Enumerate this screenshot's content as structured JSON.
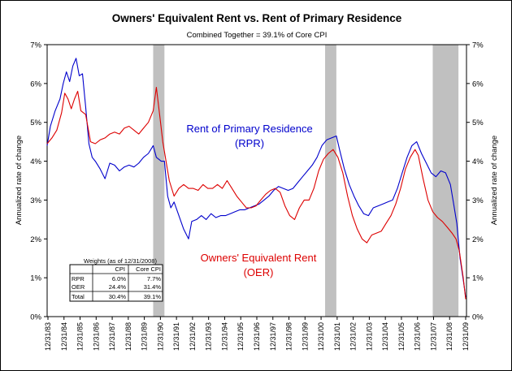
{
  "chart_data": {
    "type": "line",
    "title": "Owners' Equivalent Rent vs. Rent of Primary Residence",
    "subtitle": "Combined Together = 39.1% of Core CPI",
    "ylabel_left": "Annualized rate of change",
    "ylabel_right": "Annualized rate of change",
    "ylim": [
      0,
      7
    ],
    "y_ticks": [
      "0%",
      "1%",
      "2%",
      "3%",
      "4%",
      "5%",
      "6%",
      "7%"
    ],
    "x_ticks": [
      "12/31/83",
      "12/31/84",
      "12/31/85",
      "12/31/86",
      "12/31/87",
      "12/31/88",
      "12/31/89",
      "12/31/90",
      "12/31/91",
      "12/31/92",
      "12/31/93",
      "12/31/94",
      "12/31/95",
      "12/31/96",
      "12/31/97",
      "12/31/98",
      "12/31/99",
      "12/31/00",
      "12/31/01",
      "12/31/02",
      "12/31/03",
      "12/31/04",
      "12/31/05",
      "12/31/06",
      "12/31/07",
      "12/31/08",
      "12/31/09"
    ],
    "recessions": [
      [
        1990.5,
        1991.2
      ],
      [
        2001.2,
        2001.9
      ],
      [
        2007.9,
        2009.5
      ]
    ],
    "series": [
      {
        "label": "Rent of Primary Residence",
        "label2": "(RPR)",
        "color": "#0000CC",
        "points": [
          [
            1983.9,
            4.4
          ],
          [
            1984.1,
            4.9
          ],
          [
            1984.4,
            5.3
          ],
          [
            1984.7,
            5.6
          ],
          [
            1984.9,
            6.0
          ],
          [
            1985.1,
            6.3
          ],
          [
            1985.3,
            6.05
          ],
          [
            1985.5,
            6.45
          ],
          [
            1985.7,
            6.65
          ],
          [
            1985.9,
            6.2
          ],
          [
            1986.1,
            6.25
          ],
          [
            1986.3,
            5.4
          ],
          [
            1986.5,
            4.45
          ],
          [
            1986.7,
            4.1
          ],
          [
            1986.9,
            4.0
          ],
          [
            1987.2,
            3.8
          ],
          [
            1987.5,
            3.55
          ],
          [
            1987.8,
            3.95
          ],
          [
            1988.1,
            3.9
          ],
          [
            1988.4,
            3.75
          ],
          [
            1988.7,
            3.85
          ],
          [
            1989.0,
            3.9
          ],
          [
            1989.3,
            3.85
          ],
          [
            1989.6,
            3.95
          ],
          [
            1989.9,
            4.1
          ],
          [
            1990.2,
            4.2
          ],
          [
            1990.5,
            4.4
          ],
          [
            1990.7,
            4.1
          ],
          [
            1991.0,
            4.0
          ],
          [
            1991.2,
            4.0
          ],
          [
            1991.4,
            3.1
          ],
          [
            1991.6,
            2.8
          ],
          [
            1991.8,
            2.95
          ],
          [
            1992.1,
            2.6
          ],
          [
            1992.4,
            2.25
          ],
          [
            1992.7,
            2.0
          ],
          [
            1992.9,
            2.45
          ],
          [
            1993.2,
            2.5
          ],
          [
            1993.5,
            2.6
          ],
          [
            1993.8,
            2.5
          ],
          [
            1994.1,
            2.65
          ],
          [
            1994.4,
            2.55
          ],
          [
            1994.7,
            2.6
          ],
          [
            1995.0,
            2.6
          ],
          [
            1995.3,
            2.65
          ],
          [
            1995.6,
            2.7
          ],
          [
            1995.9,
            2.75
          ],
          [
            1996.2,
            2.75
          ],
          [
            1996.5,
            2.8
          ],
          [
            1996.8,
            2.85
          ],
          [
            1997.1,
            2.9
          ],
          [
            1997.4,
            3.0
          ],
          [
            1997.7,
            3.1
          ],
          [
            1998.0,
            3.25
          ],
          [
            1998.3,
            3.35
          ],
          [
            1998.6,
            3.3
          ],
          [
            1998.9,
            3.25
          ],
          [
            1999.2,
            3.3
          ],
          [
            1999.5,
            3.45
          ],
          [
            1999.8,
            3.6
          ],
          [
            2000.1,
            3.75
          ],
          [
            2000.4,
            3.9
          ],
          [
            2000.7,
            4.1
          ],
          [
            2001.0,
            4.4
          ],
          [
            2001.3,
            4.55
          ],
          [
            2001.6,
            4.6
          ],
          [
            2001.9,
            4.65
          ],
          [
            2002.1,
            4.3
          ],
          [
            2002.4,
            3.8
          ],
          [
            2002.7,
            3.4
          ],
          [
            2003.0,
            3.1
          ],
          [
            2003.3,
            2.85
          ],
          [
            2003.6,
            2.65
          ],
          [
            2003.9,
            2.6
          ],
          [
            2004.2,
            2.8
          ],
          [
            2004.5,
            2.85
          ],
          [
            2004.8,
            2.9
          ],
          [
            2005.1,
            2.95
          ],
          [
            2005.4,
            3.0
          ],
          [
            2005.7,
            3.3
          ],
          [
            2006.0,
            3.7
          ],
          [
            2006.3,
            4.1
          ],
          [
            2006.6,
            4.4
          ],
          [
            2006.9,
            4.5
          ],
          [
            2007.2,
            4.2
          ],
          [
            2007.5,
            3.95
          ],
          [
            2007.8,
            3.7
          ],
          [
            2008.1,
            3.6
          ],
          [
            2008.4,
            3.75
          ],
          [
            2008.7,
            3.7
          ],
          [
            2009.0,
            3.4
          ],
          [
            2009.2,
            2.9
          ],
          [
            2009.4,
            2.4
          ],
          [
            2009.6,
            1.5
          ],
          [
            2009.8,
            0.95
          ],
          [
            2009.95,
            0.5
          ]
        ]
      },
      {
        "label": "Owners' Equivalent Rent",
        "label2": "(OER)",
        "color": "#DD0000",
        "points": [
          [
            1983.9,
            4.45
          ],
          [
            1984.2,
            4.6
          ],
          [
            1984.5,
            4.8
          ],
          [
            1984.8,
            5.25
          ],
          [
            1985.0,
            5.75
          ],
          [
            1985.2,
            5.6
          ],
          [
            1985.4,
            5.35
          ],
          [
            1985.6,
            5.6
          ],
          [
            1985.8,
            5.8
          ],
          [
            1986.0,
            5.3
          ],
          [
            1986.3,
            5.2
          ],
          [
            1986.6,
            4.5
          ],
          [
            1986.9,
            4.45
          ],
          [
            1987.2,
            4.55
          ],
          [
            1987.5,
            4.6
          ],
          [
            1987.8,
            4.7
          ],
          [
            1988.1,
            4.75
          ],
          [
            1988.4,
            4.7
          ],
          [
            1988.7,
            4.85
          ],
          [
            1989.0,
            4.9
          ],
          [
            1989.3,
            4.8
          ],
          [
            1989.6,
            4.7
          ],
          [
            1989.9,
            4.85
          ],
          [
            1990.2,
            5.0
          ],
          [
            1990.5,
            5.3
          ],
          [
            1990.7,
            5.9
          ],
          [
            1990.9,
            5.2
          ],
          [
            1991.1,
            4.5
          ],
          [
            1991.3,
            4.0
          ],
          [
            1991.5,
            3.5
          ],
          [
            1991.8,
            3.1
          ],
          [
            1992.1,
            3.3
          ],
          [
            1992.4,
            3.4
          ],
          [
            1992.7,
            3.3
          ],
          [
            1993.0,
            3.3
          ],
          [
            1993.3,
            3.25
          ],
          [
            1993.6,
            3.4
          ],
          [
            1993.9,
            3.3
          ],
          [
            1994.2,
            3.3
          ],
          [
            1994.5,
            3.4
          ],
          [
            1994.8,
            3.3
          ],
          [
            1995.1,
            3.5
          ],
          [
            1995.4,
            3.3
          ],
          [
            1995.7,
            3.1
          ],
          [
            1996.0,
            2.95
          ],
          [
            1996.3,
            2.8
          ],
          [
            1996.6,
            2.8
          ],
          [
            1996.9,
            2.85
          ],
          [
            1997.2,
            3.0
          ],
          [
            1997.5,
            3.15
          ],
          [
            1997.8,
            3.25
          ],
          [
            1998.1,
            3.3
          ],
          [
            1998.4,
            3.2
          ],
          [
            1998.7,
            2.85
          ],
          [
            1999.0,
            2.6
          ],
          [
            1999.3,
            2.5
          ],
          [
            1999.6,
            2.8
          ],
          [
            1999.9,
            3.0
          ],
          [
            2000.2,
            3.0
          ],
          [
            2000.5,
            3.3
          ],
          [
            2000.8,
            3.75
          ],
          [
            2001.1,
            4.05
          ],
          [
            2001.4,
            4.2
          ],
          [
            2001.7,
            4.3
          ],
          [
            2002.0,
            4.1
          ],
          [
            2002.3,
            3.7
          ],
          [
            2002.6,
            3.1
          ],
          [
            2002.9,
            2.6
          ],
          [
            2003.2,
            2.25
          ],
          [
            2003.5,
            2.0
          ],
          [
            2003.8,
            1.9
          ],
          [
            2004.1,
            2.1
          ],
          [
            2004.4,
            2.15
          ],
          [
            2004.7,
            2.2
          ],
          [
            2005.0,
            2.4
          ],
          [
            2005.3,
            2.6
          ],
          [
            2005.6,
            2.9
          ],
          [
            2005.9,
            3.3
          ],
          [
            2006.2,
            3.8
          ],
          [
            2006.5,
            4.1
          ],
          [
            2006.8,
            4.3
          ],
          [
            2007.0,
            4.15
          ],
          [
            2007.3,
            3.55
          ],
          [
            2007.6,
            3.0
          ],
          [
            2007.9,
            2.7
          ],
          [
            2008.2,
            2.55
          ],
          [
            2008.5,
            2.45
          ],
          [
            2008.8,
            2.3
          ],
          [
            2009.1,
            2.15
          ],
          [
            2009.35,
            2.0
          ],
          [
            2009.55,
            1.7
          ],
          [
            2009.8,
            1.0
          ],
          [
            2009.95,
            0.45
          ]
        ]
      }
    ],
    "weights_table": {
      "title": "Weights (as of 12/31/2008)",
      "headers": [
        "",
        "CPI",
        "Core CPI"
      ],
      "rows": [
        [
          "RPR",
          "6.0%",
          "7.7%"
        ],
        [
          "OER",
          "24.4%",
          "31.4%"
        ],
        [
          "Total",
          "30.4%",
          "39.1%"
        ]
      ]
    }
  }
}
